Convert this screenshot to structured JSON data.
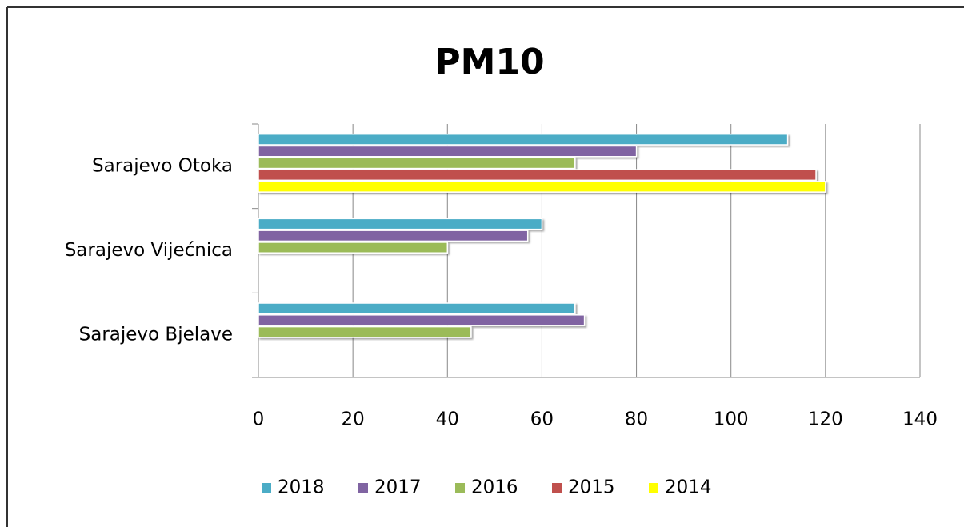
{
  "chart_data": {
    "type": "bar",
    "orientation": "horizontal",
    "title": "PM10",
    "categories": [
      "Sarajevo Otoka",
      "Sarajevo Vijećnica",
      "Sarajevo Bjelave"
    ],
    "series": [
      {
        "name": "2018",
        "color": "#4bacc6",
        "values": [
          112,
          60,
          67
        ]
      },
      {
        "name": "2017",
        "color": "#8064a2",
        "values": [
          80,
          57,
          69
        ]
      },
      {
        "name": "2016",
        "color": "#9bbb59",
        "values": [
          67,
          40,
          45
        ]
      },
      {
        "name": "2015",
        "color": "#c0504d",
        "values": [
          118,
          null,
          null
        ]
      },
      {
        "name": "2014",
        "color": "#ffff00",
        "values": [
          120,
          null,
          null
        ]
      }
    ],
    "xlim": [
      0,
      140
    ],
    "xticks": [
      0,
      20,
      40,
      60,
      80,
      100,
      120,
      140
    ],
    "grid": true,
    "legend": "bottom"
  }
}
